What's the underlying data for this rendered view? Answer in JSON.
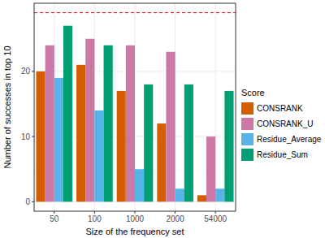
{
  "chart_data": {
    "type": "bar",
    "x_label": "Size of the frequency set",
    "y_label": "Number of successes in top 10",
    "legend_title": "Score",
    "categories": [
      "50",
      "100",
      "1000",
      "2000",
      "54000"
    ],
    "series": [
      {
        "name": "CONSRANK",
        "color": "#D55E00",
        "values": [
          20,
          21,
          17,
          12,
          1
        ]
      },
      {
        "name": "CONSRANK_U",
        "color": "#CC79A7",
        "values": [
          24,
          25,
          24,
          23,
          10
        ]
      },
      {
        "name": "Residue_Average",
        "color": "#56B4E9",
        "values": [
          19,
          14,
          5,
          2,
          2
        ]
      },
      {
        "name": "Residue_Sum",
        "color": "#009E73",
        "values": [
          27,
          24,
          18,
          18,
          17
        ]
      }
    ],
    "reference_line": 29,
    "ylim": [
      -1.45,
      30.45
    ],
    "yticks": [
      0,
      10,
      20
    ],
    "grid": true,
    "legend": "right"
  }
}
